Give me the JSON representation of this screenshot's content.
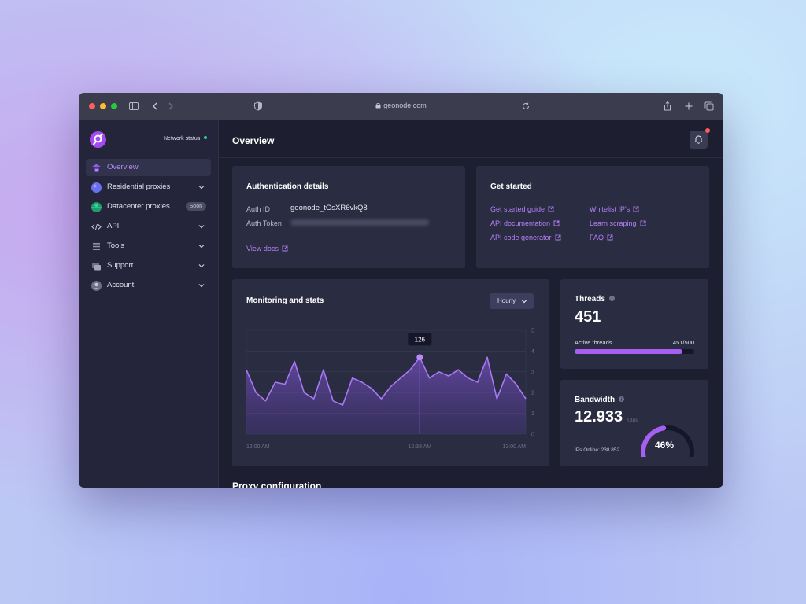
{
  "browser": {
    "url": "geonode.com"
  },
  "sidebar": {
    "network_status_label": "Network status",
    "items": [
      {
        "label": "Overview",
        "icon": "overview-icon"
      },
      {
        "label": "Residential proxies",
        "icon": "residential-icon"
      },
      {
        "label": "Datacenter proxies",
        "icon": "datacenter-icon",
        "badge": "Soon"
      },
      {
        "label": "API",
        "icon": "code-icon"
      },
      {
        "label": "Tools",
        "icon": "tools-icon"
      },
      {
        "label": "Support",
        "icon": "support-icon"
      },
      {
        "label": "Account",
        "icon": "account-icon"
      }
    ]
  },
  "header": {
    "title": "Overview"
  },
  "auth": {
    "title": "Authentication details",
    "auth_id_label": "Auth ID",
    "auth_id_value": "geonode_tGsXR6vkQ8",
    "auth_token_label": "Auth Token",
    "view_docs": "View docs"
  },
  "get_started": {
    "title": "Get started",
    "links": [
      "Get started guide",
      "API documentation",
      "API code generator",
      "Whitelist IP's",
      "Learn scraping",
      "FAQ"
    ]
  },
  "monitoring": {
    "title": "Monitoring and stats",
    "dropdown_value": "Hourly",
    "tooltip_value": "126"
  },
  "threads": {
    "title": "Threads",
    "value": "451",
    "bar_label": "Active threads",
    "bar_value": "451/500",
    "active": 451,
    "max": 500
  },
  "bandwidth": {
    "title": "Bandwidth",
    "value": "12.933",
    "unit": "KBps",
    "ips_online": "IPs Online: 238.852",
    "gauge_label": "46%",
    "gauge_fraction": 0.46
  },
  "next_section_title": "Proxy configuration",
  "colors": {
    "accent": "#b580f4",
    "bar_fill": "#a65ff0",
    "status_dot": "#2fd38a",
    "notification_dot": "#ff5f57"
  },
  "chart_data": {
    "type": "area",
    "x_tick_labels": [
      "12:00 AM",
      "12:38 AM",
      "13:00 AM"
    ],
    "y_tick_labels": [
      "0",
      "1",
      "2",
      "3",
      "4",
      "5"
    ],
    "ylim": [
      0,
      5
    ],
    "grid": true,
    "highlight": {
      "index": 18,
      "label": "126"
    },
    "series": [
      {
        "values": [
          3.1,
          2.0,
          1.6,
          2.5,
          2.4,
          3.5,
          2.0,
          1.7,
          3.1,
          1.6,
          1.4,
          2.7,
          2.5,
          2.2,
          1.7,
          2.3,
          2.7,
          3.1,
          3.7,
          2.7,
          3.0,
          2.8,
          3.1,
          2.7,
          2.5,
          3.7,
          1.7,
          2.9,
          2.4,
          1.7
        ]
      }
    ]
  }
}
